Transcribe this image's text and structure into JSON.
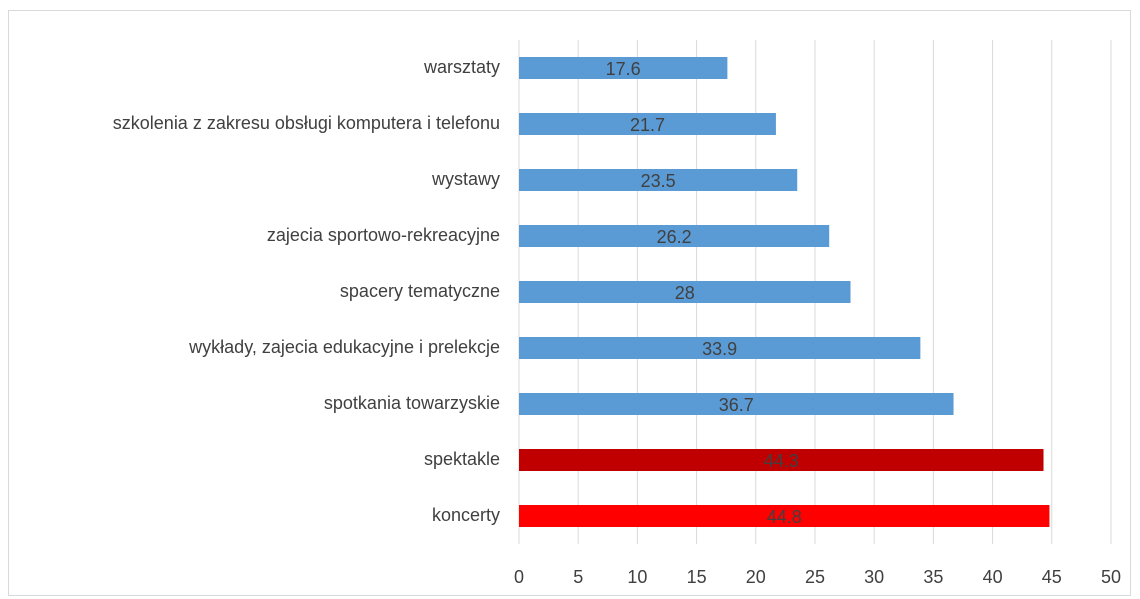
{
  "chart_data": {
    "type": "bar",
    "orientation": "horizontal",
    "categories": [
      "warsztaty",
      "szkolenia z zakresu obsługi komputera i telefonu",
      "wystawy",
      "zajecia sportowo-rekreacyjne",
      "spacery tematyczne",
      "wykłady, zajecia edukacyjne i prelekcje",
      "spotkania towarzyskie",
      "spektakle",
      "koncerty"
    ],
    "values": [
      17.6,
      21.7,
      23.5,
      26.2,
      28,
      33.9,
      36.7,
      44.3,
      44.8
    ],
    "colors": [
      "#5b9bd5",
      "#5b9bd5",
      "#5b9bd5",
      "#5b9bd5",
      "#5b9bd5",
      "#5b9bd5",
      "#5b9bd5",
      "#c00000",
      "#ff0000"
    ],
    "xlim": [
      0,
      50
    ],
    "xticks": [
      0,
      5,
      10,
      15,
      20,
      25,
      30,
      35,
      40,
      45,
      50
    ],
    "grid": true
  }
}
